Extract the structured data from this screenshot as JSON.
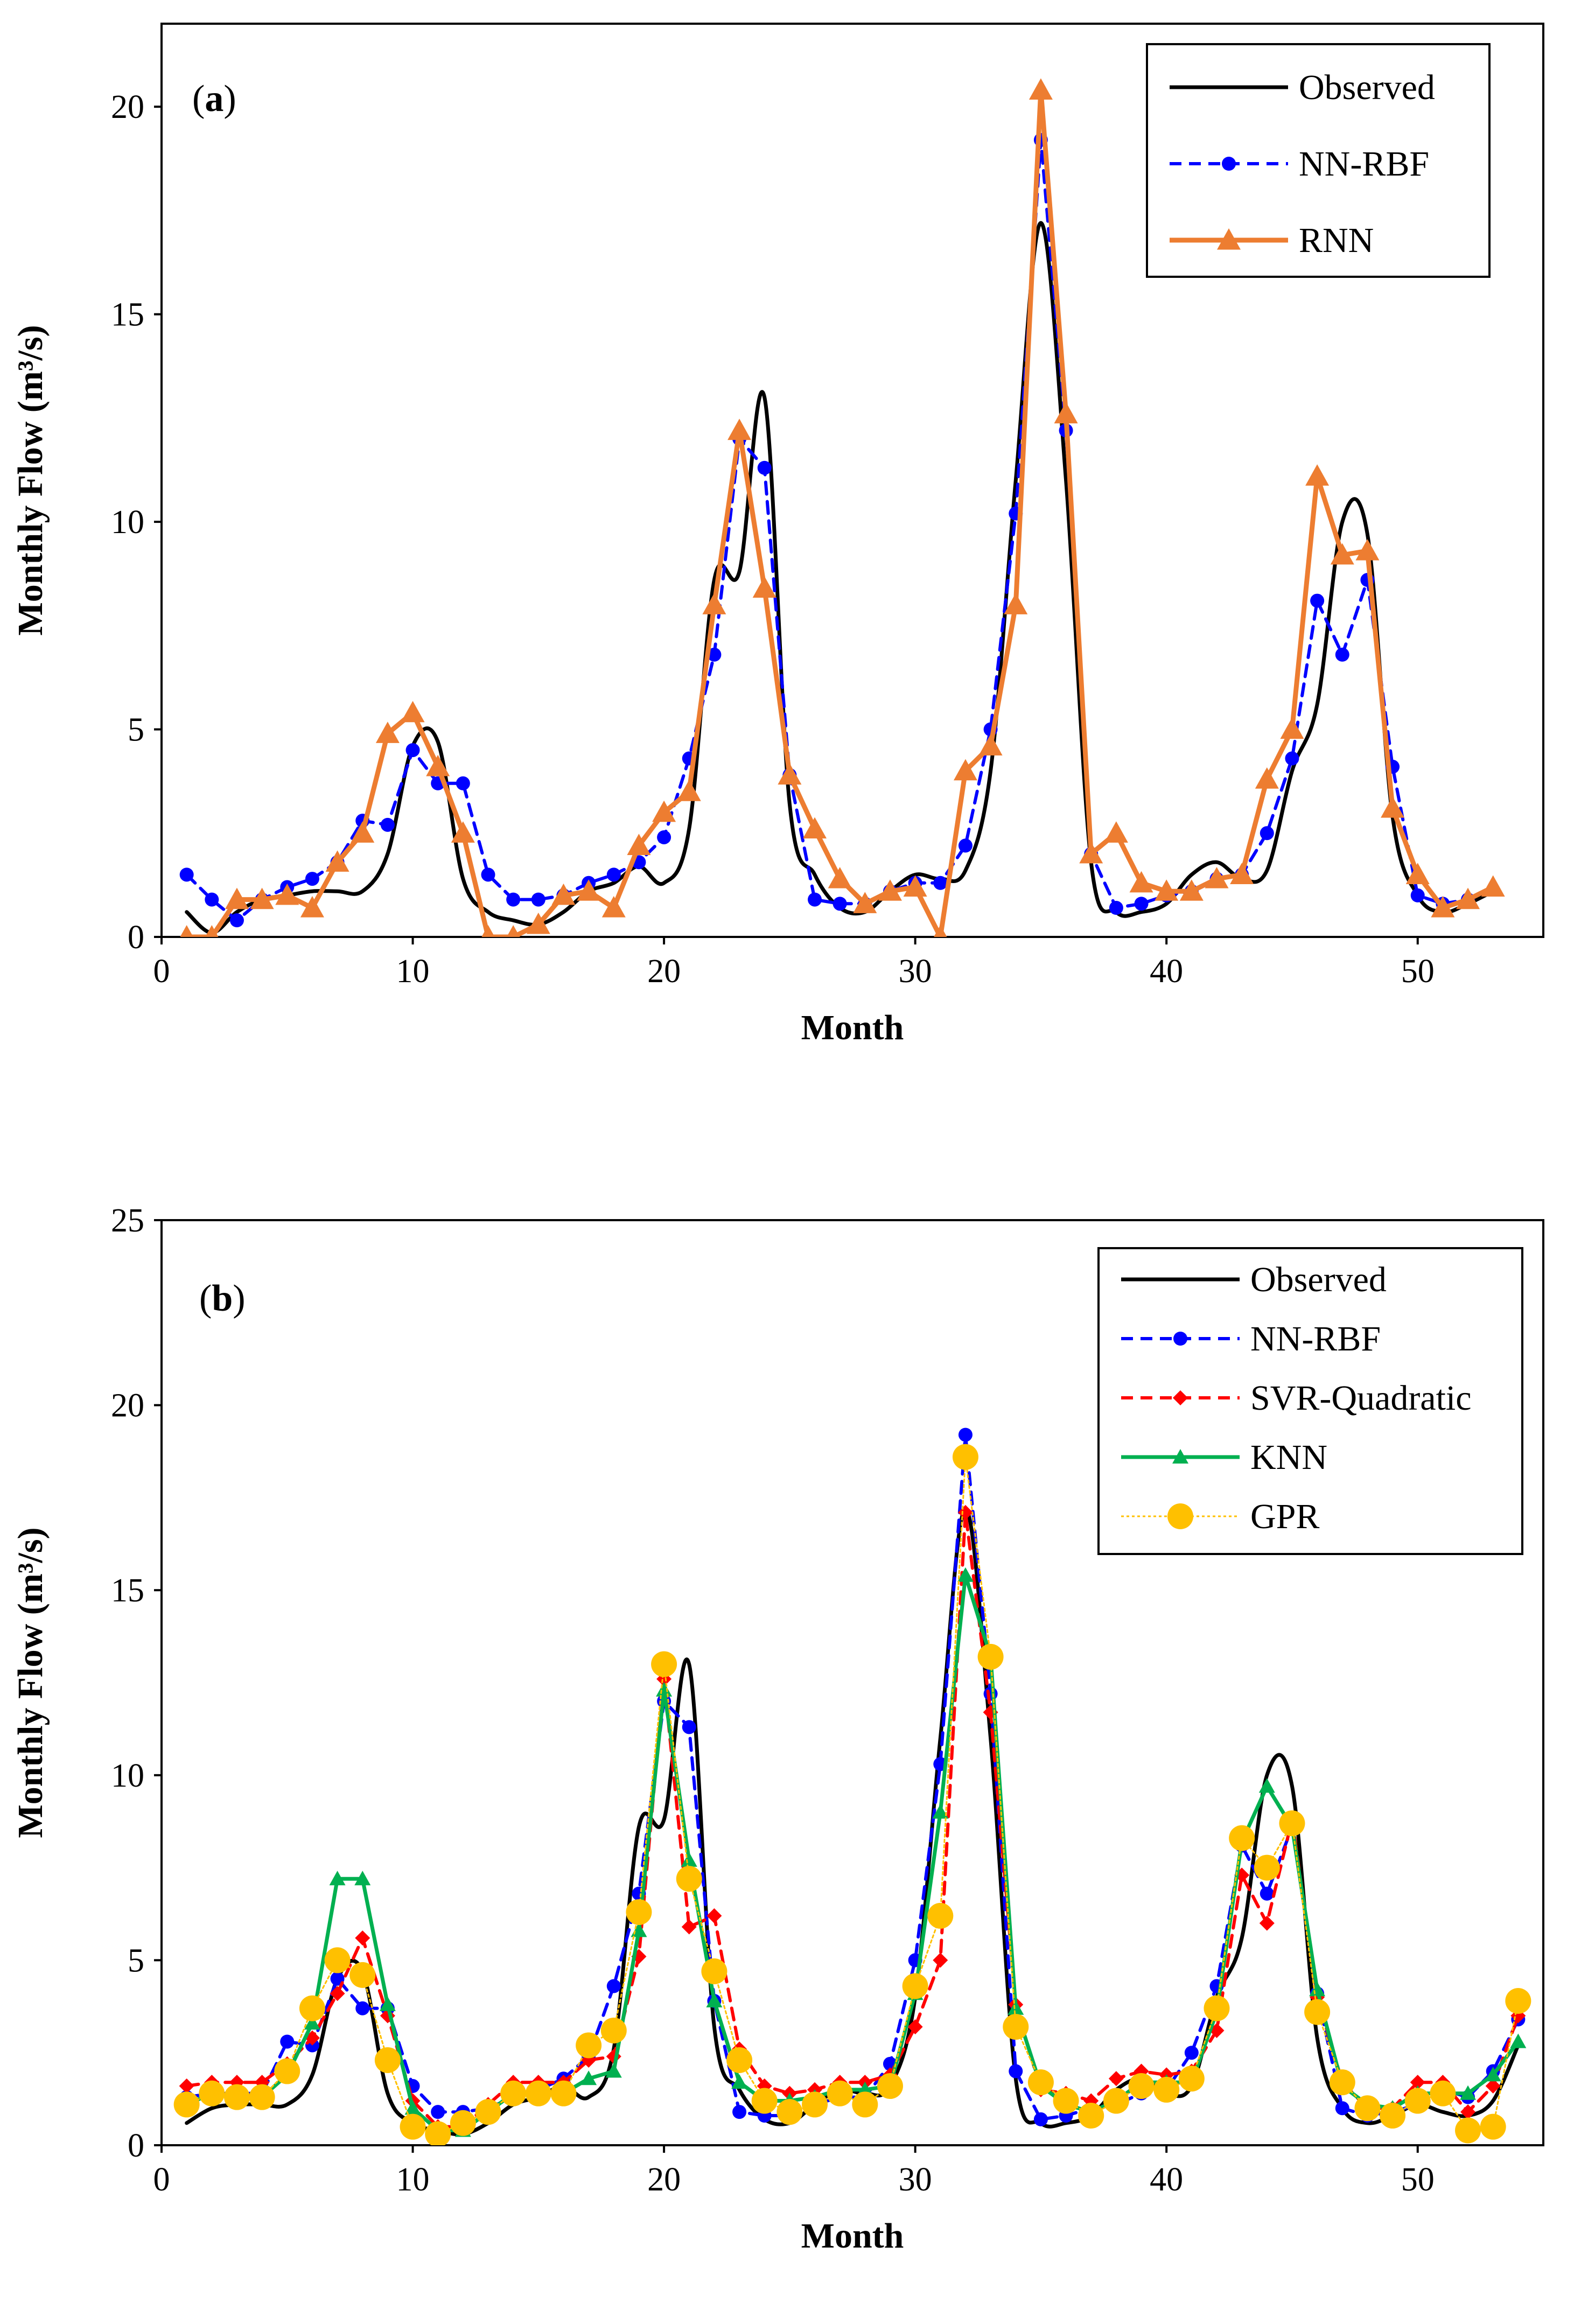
{
  "chart_data": [
    {
      "type": "line",
      "panel_label": "a",
      "xlabel": "Month",
      "ylabel": "Monthly Flow (m³/s)",
      "xlim": [
        0,
        55
      ],
      "ylim": [
        0,
        22
      ],
      "xticks": [
        0,
        10,
        20,
        30,
        40,
        50
      ],
      "yticks": [
        0,
        5,
        10,
        15,
        20
      ],
      "grid": false,
      "legend_position": "top-right",
      "series": [
        {
          "name": "Observed",
          "color": "#000000",
          "style": "solid-smooth",
          "marker": "none",
          "x": [
            1,
            2,
            3,
            4,
            5,
            6,
            7,
            8,
            9,
            10,
            11,
            12,
            13,
            14,
            15,
            16,
            17,
            18,
            19,
            20,
            21,
            22,
            23,
            24,
            25,
            26,
            27,
            28,
            29,
            30,
            31,
            32,
            33,
            34,
            35,
            36,
            37,
            38,
            39,
            40,
            41,
            42,
            43,
            44,
            45,
            46,
            47,
            48,
            49,
            50,
            51,
            52,
            53
          ],
          "values": [
            0.6,
            0.1,
            0.6,
            0.9,
            1.0,
            1.1,
            1.1,
            1.1,
            2.0,
            4.6,
            4.7,
            1.4,
            0.6,
            0.4,
            0.3,
            0.6,
            1.1,
            1.3,
            1.7,
            1.3,
            2.6,
            8.6,
            8.8,
            13.0,
            3.2,
            1.5,
            0.7,
            0.6,
            1.1,
            1.5,
            1.4,
            1.6,
            4.0,
            11.0,
            17.2,
            11.0,
            1.8,
            0.6,
            0.6,
            0.8,
            1.5,
            1.8,
            1.4,
            1.6,
            4.0,
            5.6,
            10.0,
            9.7,
            2.9,
            1.0,
            0.6,
            0.8,
            1.1
          ]
        },
        {
          "name": "NN-RBF",
          "color": "#0000ff",
          "style": "dashed",
          "marker": "circle",
          "x": [
            1,
            2,
            3,
            4,
            5,
            6,
            7,
            8,
            9,
            10,
            11,
            12,
            13,
            14,
            15,
            16,
            17,
            18,
            19,
            20,
            21,
            22,
            23,
            24,
            25,
            26,
            27,
            28,
            29,
            30,
            31,
            32,
            33,
            34,
            35,
            36,
            37,
            38,
            39,
            40,
            41,
            42,
            43,
            44,
            45,
            46,
            47,
            48,
            49,
            50,
            51,
            52
          ],
          "values": [
            1.5,
            0.9,
            0.4,
            0.9,
            1.2,
            1.4,
            1.8,
            2.8,
            2.7,
            4.5,
            3.7,
            3.7,
            1.5,
            0.9,
            0.9,
            1.0,
            1.3,
            1.5,
            1.8,
            2.4,
            4.3,
            6.8,
            12.0,
            11.3,
            3.9,
            0.9,
            0.8,
            0.8,
            1.1,
            1.3,
            1.3,
            2.2,
            5.0,
            10.2,
            19.2,
            12.2,
            2.0,
            0.7,
            0.8,
            1.0,
            1.1,
            1.4,
            1.5,
            2.5,
            4.3,
            8.1,
            6.8,
            8.6,
            4.1,
            1.0,
            0.8,
            0.9
          ]
        },
        {
          "name": "RNN",
          "color": "#ed7d31",
          "style": "solid",
          "marker": "triangle",
          "x": [
            1,
            2,
            3,
            4,
            5,
            6,
            7,
            8,
            9,
            10,
            11,
            12,
            13,
            14,
            15,
            16,
            17,
            18,
            19,
            20,
            21,
            22,
            23,
            24,
            25,
            26,
            27,
            28,
            29,
            30,
            31,
            32,
            33,
            34,
            35,
            36,
            37,
            38,
            39,
            40,
            41,
            42,
            43,
            44,
            45,
            46,
            47,
            48,
            49,
            50,
            51,
            52,
            53
          ],
          "values": [
            0.0,
            0.0,
            0.9,
            0.9,
            1.0,
            0.7,
            1.8,
            2.5,
            4.9,
            5.4,
            4.1,
            2.5,
            0.0,
            0.0,
            0.3,
            1.0,
            1.1,
            0.7,
            2.2,
            3.0,
            3.5,
            8.0,
            12.2,
            8.4,
            3.9,
            2.6,
            1.4,
            0.8,
            1.1,
            1.2,
            0.0,
            4.0,
            4.6,
            8.0,
            20.4,
            12.6,
            2.0,
            2.5,
            1.3,
            1.1,
            1.1,
            1.4,
            1.5,
            3.8,
            5.0,
            11.1,
            9.2,
            9.3,
            3.1,
            1.5,
            0.7,
            0.9,
            1.2
          ]
        }
      ]
    },
    {
      "type": "line",
      "panel_label": "b",
      "xlabel": "Month",
      "ylabel": "Monthly Flow (m³/s)",
      "xlim": [
        0,
        55
      ],
      "ylim": [
        0,
        25
      ],
      "xticks": [
        0,
        10,
        20,
        30,
        40,
        50
      ],
      "yticks": [
        0,
        5,
        10,
        15,
        20,
        25
      ],
      "grid": false,
      "legend_position": "top-right",
      "series": [
        {
          "name": "Observed",
          "color": "#000000",
          "style": "solid-smooth",
          "marker": "none",
          "x": [
            1,
            2,
            3,
            4,
            5,
            6,
            7,
            8,
            9,
            10,
            11,
            12,
            13,
            14,
            15,
            16,
            17,
            18,
            19,
            20,
            21,
            22,
            23,
            24,
            25,
            26,
            27,
            28,
            29,
            30,
            31,
            32,
            33,
            34,
            35,
            36,
            37,
            38,
            39,
            40,
            41,
            42,
            43,
            44,
            45,
            46,
            47,
            48,
            49,
            50,
            51,
            52,
            53,
            54
          ],
          "values": [
            0.6,
            1.0,
            1.1,
            1.1,
            1.1,
            1.9,
            4.5,
            4.7,
            1.4,
            0.6,
            0.4,
            0.3,
            0.6,
            1.1,
            1.3,
            1.6,
            1.3,
            2.6,
            8.6,
            8.8,
            13.0,
            3.2,
            1.5,
            0.7,
            0.6,
            1.1,
            1.5,
            1.4,
            1.6,
            4.0,
            11.0,
            17.2,
            11.0,
            1.8,
            0.6,
            0.6,
            0.8,
            1.5,
            1.8,
            1.4,
            1.6,
            4.0,
            5.6,
            10.0,
            9.7,
            2.9,
            1.0,
            0.6,
            0.8,
            1.1,
            0.9,
            0.8,
            1.2,
            2.7
          ]
        },
        {
          "name": "NN-RBF",
          "color": "#0000ff",
          "style": "dashed",
          "marker": "circle",
          "x": [
            1,
            2,
            3,
            4,
            5,
            6,
            7,
            8,
            9,
            10,
            11,
            12,
            13,
            14,
            15,
            16,
            17,
            18,
            19,
            20,
            21,
            22,
            23,
            24,
            25,
            26,
            27,
            28,
            29,
            30,
            31,
            32,
            33,
            34,
            35,
            36,
            37,
            38,
            39,
            40,
            41,
            42,
            43,
            44,
            45,
            46,
            47,
            48,
            49,
            50,
            51,
            52,
            53,
            54
          ],
          "values": [
            1.3,
            1.4,
            1.4,
            1.4,
            2.8,
            2.7,
            4.5,
            3.7,
            3.7,
            1.6,
            0.9,
            0.9,
            1.0,
            1.3,
            1.5,
            1.8,
            2.4,
            4.3,
            6.8,
            12.0,
            11.3,
            3.9,
            0.9,
            0.8,
            0.8,
            1.1,
            1.3,
            1.3,
            2.2,
            5.0,
            10.3,
            19.2,
            12.2,
            2.0,
            0.7,
            0.8,
            1.0,
            1.1,
            1.4,
            1.5,
            2.5,
            4.3,
            8.1,
            6.8,
            8.6,
            4.1,
            1.0,
            0.8,
            0.9,
            1.1,
            1.5,
            1.3,
            2.0,
            3.4
          ]
        },
        {
          "name": "SVR-Quadratic",
          "color": "#ff0000",
          "style": "dashed",
          "marker": "diamond",
          "x": [
            1,
            2,
            3,
            4,
            5,
            6,
            7,
            8,
            9,
            10,
            11,
            12,
            13,
            14,
            15,
            16,
            17,
            18,
            19,
            20,
            21,
            22,
            23,
            24,
            25,
            26,
            27,
            28,
            29,
            30,
            31,
            32,
            33,
            34,
            35,
            36,
            37,
            38,
            39,
            40,
            41,
            42,
            43,
            44,
            45,
            46,
            47,
            48,
            49,
            50,
            51,
            52,
            53,
            54
          ],
          "values": [
            1.6,
            1.7,
            1.7,
            1.7,
            2.2,
            2.9,
            4.1,
            5.6,
            3.5,
            1.2,
            0.5,
            0.5,
            1.1,
            1.7,
            1.7,
            1.7,
            2.3,
            2.4,
            5.1,
            12.6,
            5.9,
            6.2,
            2.6,
            1.6,
            1.4,
            1.5,
            1.7,
            1.7,
            1.9,
            3.2,
            5.0,
            17.1,
            11.7,
            3.8,
            1.5,
            1.4,
            1.2,
            1.8,
            2.0,
            1.9,
            2.0,
            3.1,
            7.3,
            6.0,
            8.8,
            4.0,
            1.7,
            1.0,
            1.0,
            1.7,
            1.7,
            0.9,
            1.6,
            3.5
          ]
        },
        {
          "name": "KNN",
          "color": "#00b050",
          "style": "solid",
          "marker": "triangle",
          "x": [
            1,
            2,
            3,
            4,
            5,
            6,
            7,
            8,
            9,
            10,
            11,
            12,
            13,
            14,
            15,
            16,
            17,
            18,
            19,
            20,
            21,
            22,
            23,
            24,
            25,
            26,
            27,
            28,
            29,
            30,
            31,
            32,
            33,
            34,
            35,
            36,
            37,
            38,
            39,
            40,
            41,
            42,
            43,
            44,
            45,
            46,
            47,
            48,
            49,
            50,
            51,
            52,
            53,
            54
          ],
          "values": [
            1.1,
            1.4,
            1.3,
            1.3,
            1.9,
            3.3,
            7.2,
            7.2,
            3.8,
            1.0,
            0.4,
            0.4,
            0.9,
            1.4,
            1.4,
            1.4,
            1.8,
            2.0,
            5.8,
            12.3,
            7.7,
            3.9,
            1.7,
            1.2,
            1.2,
            1.3,
            1.5,
            1.5,
            1.6,
            4.1,
            9.0,
            15.4,
            13.2,
            3.7,
            1.6,
            1.1,
            0.9,
            1.2,
            1.7,
            1.7,
            1.7,
            3.6,
            8.2,
            9.7,
            8.6,
            4.2,
            1.6,
            1.1,
            1.0,
            1.4,
            1.4,
            1.4,
            1.9,
            2.8
          ]
        },
        {
          "name": "GPR",
          "color": "#ffc000",
          "style": "dotted",
          "marker": "large-circle",
          "x": [
            1,
            2,
            3,
            4,
            5,
            6,
            7,
            8,
            9,
            10,
            11,
            12,
            13,
            14,
            15,
            16,
            17,
            18,
            19,
            20,
            21,
            22,
            23,
            24,
            25,
            26,
            27,
            28,
            29,
            30,
            31,
            32,
            33,
            34,
            35,
            36,
            37,
            38,
            39,
            40,
            41,
            42,
            43,
            44,
            45,
            46,
            47,
            48,
            49,
            50,
            51,
            52,
            53,
            54
          ],
          "values": [
            1.1,
            1.4,
            1.3,
            1.3,
            2.0,
            3.7,
            5.0,
            4.6,
            2.3,
            0.5,
            0.3,
            0.6,
            0.9,
            1.4,
            1.4,
            1.4,
            2.7,
            3.1,
            6.3,
            13.0,
            7.2,
            4.7,
            2.3,
            1.2,
            0.9,
            1.1,
            1.4,
            1.1,
            1.6,
            4.3,
            6.2,
            18.6,
            13.2,
            3.2,
            1.7,
            1.2,
            0.8,
            1.2,
            1.6,
            1.5,
            1.8,
            3.7,
            8.3,
            7.5,
            8.7,
            3.6,
            1.7,
            1.0,
            0.8,
            1.2,
            1.4,
            0.4,
            0.5,
            3.9
          ]
        }
      ]
    }
  ]
}
